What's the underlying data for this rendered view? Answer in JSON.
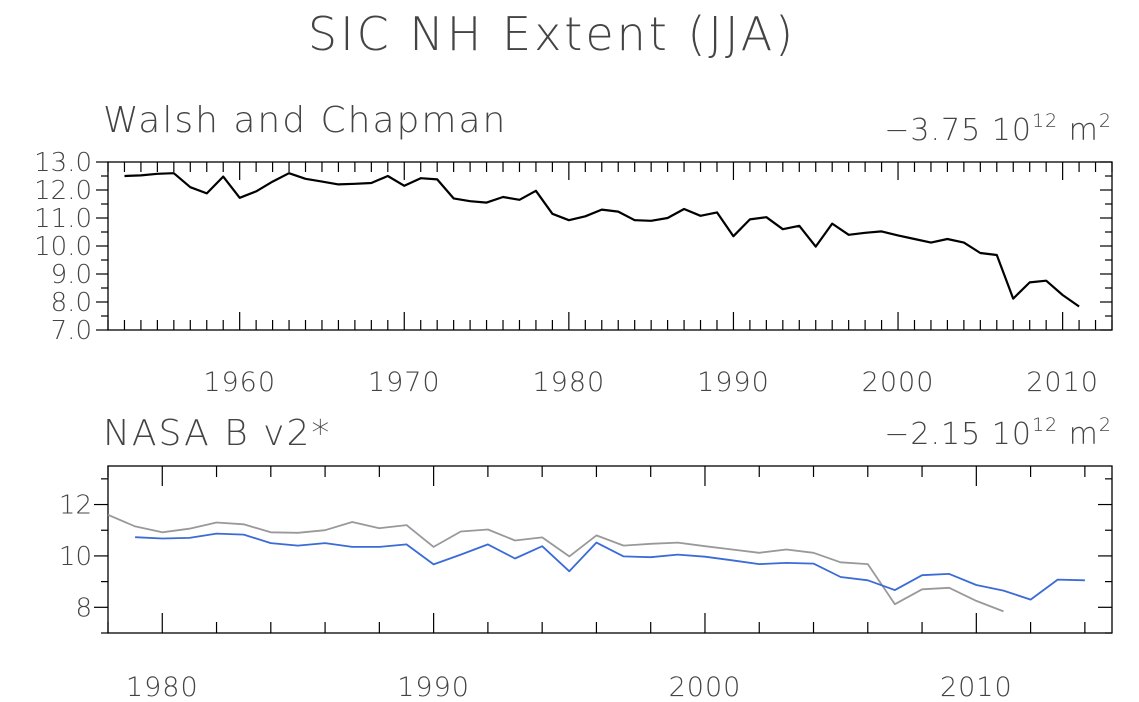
{
  "title": "SIC NH Extent (JJA)",
  "chart_data": [
    {
      "type": "line",
      "title": "Walsh and Chapman",
      "trend": {
        "value": "−3.75",
        "base": "10",
        "exponent": "12",
        "unit": "m",
        "unit_exponent": "2"
      },
      "xlim": [
        1952,
        2013
      ],
      "ylim": [
        7.0,
        13.0
      ],
      "x_ticks": [
        1960,
        1970,
        1980,
        1990,
        2000,
        2010
      ],
      "y_ticks": [
        "7.0",
        "8.0",
        "9.0",
        "10.0",
        "11.0",
        "12.0",
        "13.0"
      ],
      "series": [
        {
          "color": "#000000",
          "x": [
            1953,
            1954,
            1955,
            1956,
            1957,
            1958,
            1959,
            1960,
            1961,
            1962,
            1963,
            1964,
            1965,
            1966,
            1967,
            1968,
            1969,
            1970,
            1971,
            1972,
            1973,
            1974,
            1975,
            1976,
            1977,
            1978,
            1979,
            1980,
            1981,
            1982,
            1983,
            1984,
            1985,
            1986,
            1987,
            1988,
            1989,
            1990,
            1991,
            1992,
            1993,
            1994,
            1995,
            1996,
            1997,
            1998,
            1999,
            2000,
            2001,
            2002,
            2003,
            2004,
            2005,
            2006,
            2007,
            2008,
            2009,
            2010,
            2011
          ],
          "values": [
            12.5,
            12.52,
            12.58,
            12.6,
            12.1,
            11.88,
            12.48,
            11.72,
            11.95,
            12.3,
            12.6,
            12.4,
            12.3,
            12.2,
            12.22,
            12.25,
            12.5,
            12.15,
            12.42,
            12.38,
            11.7,
            11.6,
            11.55,
            11.75,
            11.65,
            11.97,
            11.15,
            10.92,
            11.06,
            11.3,
            11.23,
            10.92,
            10.9,
            11.0,
            11.32,
            11.08,
            11.2,
            10.35,
            10.95,
            11.03,
            10.6,
            10.72,
            9.98,
            10.8,
            10.4,
            10.47,
            10.52,
            10.38,
            10.25,
            10.12,
            10.25,
            10.12,
            9.75,
            9.68,
            8.12,
            8.7,
            8.76,
            8.25,
            7.84
          ]
        }
      ]
    },
    {
      "type": "line",
      "title": "NASA B v2*",
      "trend": {
        "value": "−2.15",
        "base": "10",
        "exponent": "12",
        "unit": "m",
        "unit_exponent": "2"
      },
      "xlim": [
        1978,
        2015
      ],
      "ylim": [
        7,
        13.5
      ],
      "x_ticks": [
        1980,
        1990,
        2000,
        2010
      ],
      "y_ticks": [
        "8",
        "10",
        "12"
      ],
      "series": [
        {
          "color": "#999999",
          "x": [
            1978,
            1979,
            1980,
            1981,
            1982,
            1983,
            1984,
            1985,
            1986,
            1987,
            1988,
            1989,
            1990,
            1991,
            1992,
            1993,
            1994,
            1995,
            1996,
            1997,
            1998,
            1999,
            2000,
            2001,
            2002,
            2003,
            2004,
            2005,
            2006,
            2007,
            2008,
            2009,
            2010,
            2011
          ],
          "values": [
            11.6,
            11.15,
            10.92,
            11.06,
            11.3,
            11.23,
            10.92,
            10.9,
            11.0,
            11.32,
            11.08,
            11.2,
            10.35,
            10.95,
            11.03,
            10.6,
            10.72,
            9.98,
            10.8,
            10.4,
            10.47,
            10.52,
            10.38,
            10.25,
            10.12,
            10.25,
            10.12,
            9.75,
            9.68,
            8.12,
            8.7,
            8.76,
            8.25,
            7.84
          ]
        },
        {
          "color": "#3b6bd6",
          "x": [
            1979,
            1980,
            1981,
            1982,
            1983,
            1984,
            1985,
            1986,
            1987,
            1988,
            1989,
            1990,
            1991,
            1992,
            1993,
            1994,
            1995,
            1996,
            1997,
            1998,
            1999,
            2000,
            2001,
            2002,
            2003,
            2004,
            2005,
            2006,
            2007,
            2008,
            2009,
            2010,
            2011,
            2012,
            2013,
            2014
          ],
          "values": [
            10.73,
            10.68,
            10.7,
            10.87,
            10.83,
            10.5,
            10.4,
            10.5,
            10.35,
            10.35,
            10.45,
            9.67,
            10.05,
            10.45,
            9.9,
            10.38,
            9.4,
            10.52,
            9.98,
            9.95,
            10.05,
            9.97,
            9.83,
            9.68,
            9.73,
            9.7,
            9.18,
            9.05,
            8.67,
            9.25,
            9.3,
            8.87,
            8.65,
            8.3,
            9.08,
            9.05
          ]
        }
      ]
    }
  ]
}
